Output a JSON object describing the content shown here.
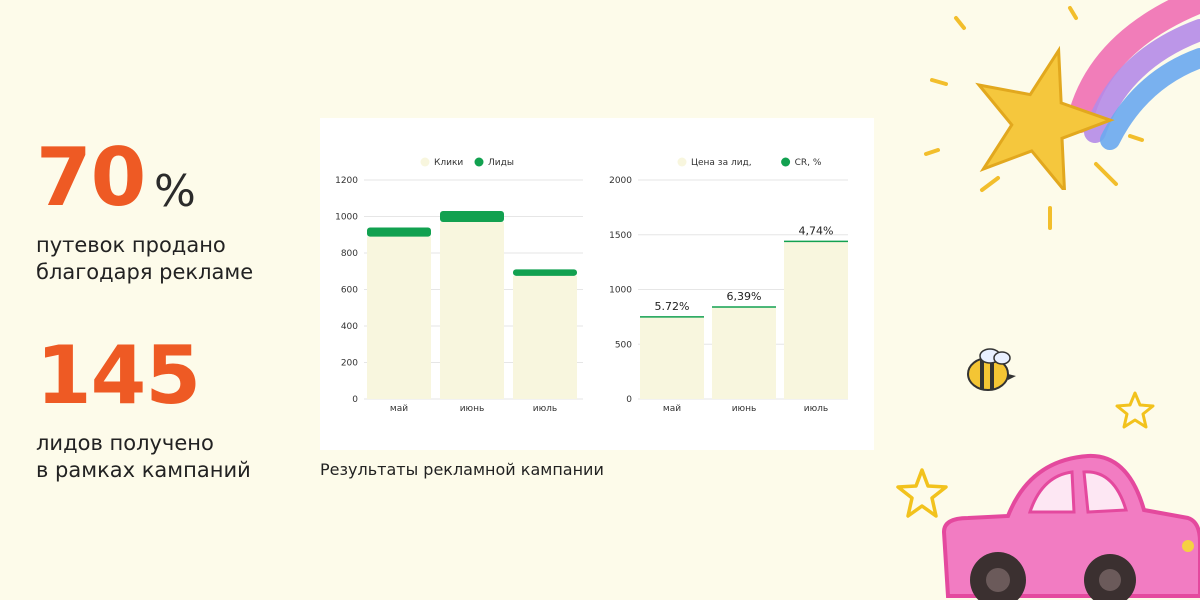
{
  "stats": [
    {
      "value": "70",
      "unit": "%",
      "caption": "путевок продано\nблагодаря рекламе"
    },
    {
      "value": "145",
      "unit": "",
      "caption": "лидов получено\nв рамках кампаний"
    }
  ],
  "panel_caption": "Результаты рекламной кампании",
  "colors": {
    "accent": "#ee5a24",
    "light_bar": "#f8f6de",
    "green": "#12a150"
  },
  "chart_data": [
    {
      "type": "bar",
      "categories": [
        "май",
        "июнь",
        "июль"
      ],
      "series": [
        {
          "name": "Клики",
          "values": [
            890,
            970,
            675
          ]
        },
        {
          "name": "Лиды",
          "values": [
            50,
            60,
            35
          ]
        }
      ],
      "stacked": true,
      "ylim": [
        0,
        1200
      ],
      "yticks": [
        0,
        200,
        400,
        600,
        800,
        1000,
        1200
      ],
      "legend": "top-center",
      "grid": true
    },
    {
      "type": "bar",
      "categories": [
        "май",
        "июнь",
        "июль"
      ],
      "series": [
        {
          "name": "Цена за лид, ",
          "values": [
            750,
            840,
            1440
          ]
        },
        {
          "name": "CR, %",
          "values": [
            5.72,
            6.39,
            4.74
          ]
        }
      ],
      "data_labels": [
        "5.72%",
        "6,39%",
        "4,74%"
      ],
      "ylim": [
        0,
        2000
      ],
      "yticks": [
        0,
        500,
        1000,
        1500,
        2000
      ],
      "legend": "top-center",
      "grid": true
    }
  ]
}
